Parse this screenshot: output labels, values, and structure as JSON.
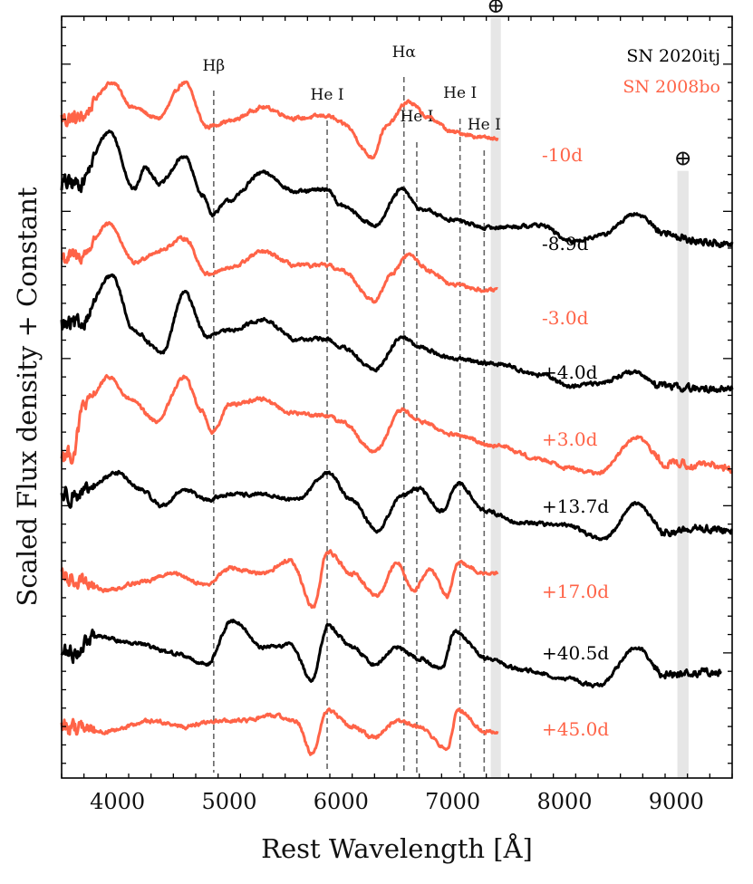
{
  "chart_data": {
    "type": "line",
    "xlabel": "Rest Wavelength [Å]",
    "ylabel": "Scaled Flux density + Constant",
    "xlim": [
      3500,
      9500
    ],
    "x_ticks": [
      4000,
      5000,
      6000,
      7000,
      8000,
      9000
    ],
    "y_tick_labels_shown": false,
    "grid": false,
    "legend": {
      "placement": "top-right",
      "entries": [
        {
          "label": "SN 2020itj",
          "color": "#000000"
        },
        {
          "label": "SN 2008bo",
          "color": "#ff6347"
        }
      ]
    },
    "line_identifications": [
      {
        "label": "Hβ",
        "wavelength": 4861
      },
      {
        "label": "He I",
        "wavelength": 5876
      },
      {
        "label": "Hα",
        "wavelength": 6563
      },
      {
        "label": "He I",
        "wavelength": 6678
      },
      {
        "label": "He I",
        "wavelength": 7065
      },
      {
        "label": "He I",
        "wavelength": 7281
      }
    ],
    "telluric_bands": [
      {
        "symbol": "⊕",
        "range": [
          7340,
          7430
        ]
      },
      {
        "symbol": "⊕",
        "range": [
          9010,
          9110
        ]
      }
    ],
    "series": [
      {
        "object": "SN 2008bo",
        "epoch": "-10d",
        "color": "#ff6347",
        "x_range": [
          3500,
          7400
        ],
        "offset": 7.0,
        "features": [
          [
            3650,
            0.35
          ],
          [
            3950,
            1.0
          ],
          [
            4140,
            0.55
          ],
          [
            4360,
            0.35
          ],
          [
            4600,
            1.0
          ],
          [
            4800,
            0.2
          ],
          [
            5000,
            0.3
          ],
          [
            5300,
            0.55
          ],
          [
            5600,
            0.35
          ],
          [
            5880,
            0.4
          ],
          [
            6020,
            0.25
          ],
          [
            6280,
            -0.35
          ],
          [
            6400,
            0.2
          ],
          [
            6600,
            0.65
          ],
          [
            6800,
            0.35
          ],
          [
            7000,
            0.1
          ],
          [
            7300,
            0.0
          ]
        ]
      },
      {
        "object": "SN 2020itj",
        "epoch": "-8.9d",
        "color": "#000000",
        "x_range": [
          3500,
          9500
        ],
        "offset": 6.0,
        "features": [
          [
            3650,
            0.5
          ],
          [
            3930,
            1.45
          ],
          [
            4150,
            0.4
          ],
          [
            4250,
            0.8
          ],
          [
            4380,
            0.5
          ],
          [
            4600,
            1.0
          ],
          [
            4760,
            0.3
          ],
          [
            4850,
            -0.05
          ],
          [
            5000,
            0.2
          ],
          [
            5300,
            0.7
          ],
          [
            5600,
            0.35
          ],
          [
            5880,
            0.4
          ],
          [
            6000,
            0.1
          ],
          [
            6300,
            -0.25
          ],
          [
            6550,
            0.4
          ],
          [
            6700,
            0.05
          ],
          [
            7000,
            -0.15
          ],
          [
            7300,
            -0.3
          ],
          [
            7500,
            -0.28
          ],
          [
            7800,
            -0.25
          ],
          [
            8050,
            -0.55
          ],
          [
            8300,
            -0.45
          ],
          [
            8650,
            -0.05
          ],
          [
            8900,
            -0.4
          ],
          [
            9200,
            -0.55
          ],
          [
            9500,
            -0.6
          ]
        ]
      },
      {
        "object": "SN 2008bo",
        "epoch": "-3.0d",
        "color": "#ff6347",
        "x_range": [
          3500,
          7400
        ],
        "offset": 5.0,
        "features": [
          [
            3650,
            0.5
          ],
          [
            3930,
            1.1
          ],
          [
            4150,
            0.4
          ],
          [
            4350,
            0.6
          ],
          [
            4600,
            0.85
          ],
          [
            4800,
            0.2
          ],
          [
            5000,
            0.3
          ],
          [
            5300,
            0.6
          ],
          [
            5600,
            0.35
          ],
          [
            5880,
            0.35
          ],
          [
            6020,
            0.25
          ],
          [
            6300,
            -0.3
          ],
          [
            6450,
            0.2
          ],
          [
            6600,
            0.55
          ],
          [
            6800,
            0.25
          ],
          [
            7000,
            0.0
          ],
          [
            7300,
            -0.1
          ]
        ]
      },
      {
        "object": "SN 2020itj",
        "epoch": "+4.0d",
        "color": "#000000",
        "x_range": [
          3500,
          9500
        ],
        "offset": 4.0,
        "features": [
          [
            3650,
            0.6
          ],
          [
            3950,
            1.5
          ],
          [
            4150,
            0.5
          ],
          [
            4400,
            0.1
          ],
          [
            4600,
            1.2
          ],
          [
            4800,
            0.4
          ],
          [
            4980,
            0.5
          ],
          [
            5300,
            0.7
          ],
          [
            5600,
            0.35
          ],
          [
            5880,
            0.35
          ],
          [
            6000,
            0.2
          ],
          [
            6300,
            -0.2
          ],
          [
            6550,
            0.4
          ],
          [
            6700,
            0.2
          ],
          [
            7000,
            0.0
          ],
          [
            7400,
            -0.1
          ],
          [
            7800,
            -0.3
          ],
          [
            8050,
            -0.5
          ],
          [
            8300,
            -0.45
          ],
          [
            8600,
            -0.25
          ],
          [
            8900,
            -0.5
          ],
          [
            9200,
            -0.55
          ],
          [
            9500,
            -0.55
          ]
        ]
      },
      {
        "object": "SN 2008bo",
        "epoch": "+3.0d",
        "color": "#ff6347",
        "x_range": [
          3500,
          9500
        ],
        "offset": 3.0,
        "features": [
          [
            3600,
            -0.4
          ],
          [
            3700,
            0.5
          ],
          [
            3930,
            1.0
          ],
          [
            4100,
            0.6
          ],
          [
            4350,
            0.2
          ],
          [
            4600,
            1.0
          ],
          [
            4750,
            0.4
          ],
          [
            4850,
            0.0
          ],
          [
            5000,
            0.5
          ],
          [
            5300,
            0.6
          ],
          [
            5550,
            0.35
          ],
          [
            5880,
            0.3
          ],
          [
            6000,
            0.2
          ],
          [
            6300,
            -0.35
          ],
          [
            6550,
            0.4
          ],
          [
            6700,
            0.2
          ],
          [
            7000,
            -0.05
          ],
          [
            7400,
            -0.25
          ],
          [
            7800,
            -0.5
          ],
          [
            8050,
            -0.65
          ],
          [
            8300,
            -0.75
          ],
          [
            8650,
            -0.1
          ],
          [
            8900,
            -0.55
          ],
          [
            9200,
            -0.6
          ],
          [
            9500,
            -0.65
          ]
        ]
      },
      {
        "object": "SN 2020itj",
        "epoch": "+13.7d",
        "color": "#000000",
        "x_range": [
          3500,
          9500
        ],
        "offset": 2.0,
        "features": [
          [
            3650,
            0.2
          ],
          [
            4000,
            0.6
          ],
          [
            4200,
            0.3
          ],
          [
            4400,
            0.0
          ],
          [
            4600,
            0.3
          ],
          [
            4800,
            0.1
          ],
          [
            4980,
            0.2
          ],
          [
            5300,
            0.2
          ],
          [
            5600,
            0.1
          ],
          [
            5880,
            0.6
          ],
          [
            6100,
            0.1
          ],
          [
            6320,
            -0.45
          ],
          [
            6550,
            0.2
          ],
          [
            6700,
            0.3
          ],
          [
            6900,
            -0.1
          ],
          [
            7050,
            0.4
          ],
          [
            7300,
            -0.1
          ],
          [
            7600,
            -0.3
          ],
          [
            8000,
            -0.35
          ],
          [
            8350,
            -0.6
          ],
          [
            8650,
            0.05
          ],
          [
            8900,
            -0.5
          ],
          [
            9200,
            -0.4
          ],
          [
            9500,
            -0.45
          ]
        ]
      },
      {
        "object": "SN 2008bo",
        "epoch": "+17.0d",
        "color": "#ff6347",
        "x_range": [
          3500,
          7400
        ],
        "offset": 1.0,
        "features": [
          [
            3650,
            0.0
          ],
          [
            3900,
            -0.2
          ],
          [
            4200,
            -0.05
          ],
          [
            4500,
            0.1
          ],
          [
            4800,
            -0.1
          ],
          [
            5000,
            0.2
          ],
          [
            5300,
            0.1
          ],
          [
            5550,
            0.35
          ],
          [
            5750,
            -0.5
          ],
          [
            5880,
            0.5
          ],
          [
            6100,
            0.1
          ],
          [
            6320,
            -0.3
          ],
          [
            6500,
            0.3
          ],
          [
            6650,
            -0.2
          ],
          [
            6800,
            0.2
          ],
          [
            6950,
            -0.3
          ],
          [
            7050,
            0.3
          ],
          [
            7300,
            0.1
          ]
        ]
      },
      {
        "object": "SN 2020itj",
        "epoch": "+40.5d",
        "color": "#000000",
        "x_range": [
          3500,
          9400
        ],
        "offset": 0.0,
        "features": [
          [
            3600,
            0.0
          ],
          [
            3800,
            0.3
          ],
          [
            4100,
            0.2
          ],
          [
            4500,
            0.0
          ],
          [
            4800,
            -0.2
          ],
          [
            5030,
            0.6
          ],
          [
            5300,
            0.1
          ],
          [
            5550,
            0.15
          ],
          [
            5740,
            -0.5
          ],
          [
            5880,
            0.5
          ],
          [
            6100,
            0.1
          ],
          [
            6300,
            -0.2
          ],
          [
            6500,
            0.1
          ],
          [
            6700,
            -0.1
          ],
          [
            6900,
            -0.3
          ],
          [
            7020,
            0.4
          ],
          [
            7300,
            -0.1
          ],
          [
            7600,
            -0.3
          ],
          [
            8000,
            -0.45
          ],
          [
            8300,
            -0.6
          ],
          [
            8650,
            0.1
          ],
          [
            8900,
            -0.4
          ],
          [
            9200,
            -0.35
          ],
          [
            9400,
            -0.35
          ]
        ]
      },
      {
        "object": "SN 2008bo",
        "epoch": "+45.0d",
        "color": "#ff6347",
        "x_range": [
          3500,
          7400
        ],
        "offset": -1.0,
        "features": [
          [
            3650,
            0.0
          ],
          [
            3900,
            -0.1
          ],
          [
            4300,
            0.1
          ],
          [
            4600,
            0.0
          ],
          [
            4900,
            0.1
          ],
          [
            5100,
            0.1
          ],
          [
            5400,
            0.2
          ],
          [
            5600,
            0.1
          ],
          [
            5740,
            -0.5
          ],
          [
            5880,
            0.3
          ],
          [
            6100,
            0.0
          ],
          [
            6300,
            -0.2
          ],
          [
            6500,
            0.1
          ],
          [
            6700,
            0.0
          ],
          [
            6950,
            -0.4
          ],
          [
            7050,
            0.3
          ],
          [
            7300,
            -0.1
          ]
        ]
      }
    ]
  }
}
